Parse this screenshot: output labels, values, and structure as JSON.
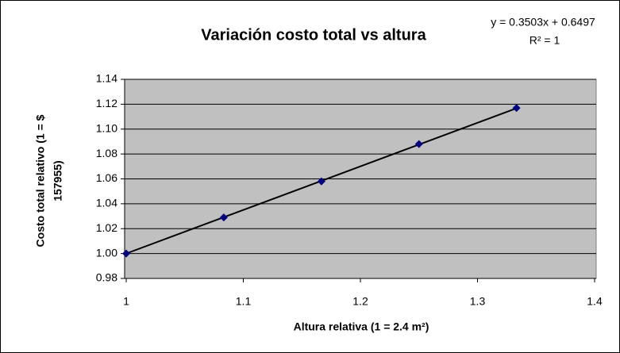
{
  "chart_data": {
    "type": "scatter",
    "title": "Variación costo total vs altura",
    "annotations": [
      "y = 0.3503x + 0.6497",
      "R² = 1"
    ],
    "trendline": {
      "slope": 0.3503,
      "intercept": 0.6497
    },
    "x_label": "Altura relativa (1 = 2.4 m²)",
    "y_label": [
      "Costo total relativo (1 = $",
      "157955)"
    ],
    "x": [
      1,
      1.0833,
      1.1667,
      1.25,
      1.3333
    ],
    "values": [
      1.0,
      1.029,
      1.058,
      1.088,
      1.117
    ],
    "color": "#000080",
    "xlim": [
      1,
      1.4
    ],
    "xticks": [
      1,
      1.1,
      1.2,
      1.3,
      1.4
    ],
    "ylim": [
      0.98,
      1.14
    ],
    "yticks": [
      0.98,
      {
        "value": 1,
        "label": "1.00"
      },
      1.02,
      1.04,
      1.06,
      1.08,
      {
        "value": 1.1,
        "label": "1.10"
      },
      1.12,
      1.14
    ],
    "grid": true
  }
}
